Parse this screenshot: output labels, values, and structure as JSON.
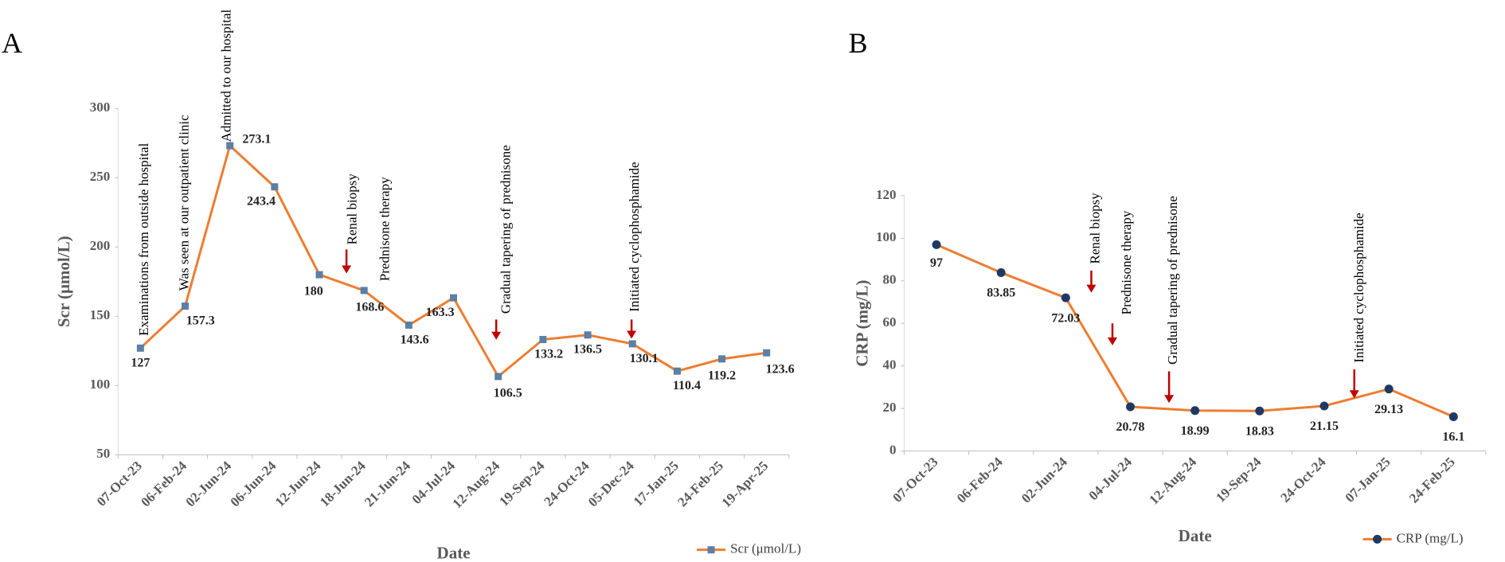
{
  "chart_data": [
    {
      "type": "line",
      "panel": "A",
      "x_label": "Date",
      "y_label": "Scr (μmol/L)",
      "categories": [
        "07-Oct-23",
        "06-Feb-24",
        "02-Jun-24",
        "06-Jun-24",
        "12-Jun-24",
        "18-Jun-24",
        "21-Jun-24",
        "04-Jul-24",
        "12-Aug-24",
        "19-Sep-24",
        "24-Oct-24",
        "05-Dec-24",
        "17-Jan-25",
        "24-Feb-25",
        "19-Apr-25"
      ],
      "series": [
        {
          "name": "Scr (μmol/L)",
          "color": "#ED7D31",
          "marker_color": "#5B7FA6",
          "marker": "square",
          "values": [
            127,
            157.3,
            273.1,
            243.4,
            180,
            168.6,
            143.6,
            163.3,
            106.5,
            133.2,
            136.5,
            130.1,
            110.4,
            119.2,
            123.6
          ]
        }
      ],
      "ylim": [
        50,
        300
      ],
      "yticks": [
        50,
        100,
        150,
        200,
        250,
        300
      ],
      "legend": "bottom-right",
      "arrow_color": "#C00000",
      "annotations": [
        "Examinations from outside hospital",
        "Was seen at our outpatient clinic",
        "Admitted to our hospital",
        "Renal biopsy",
        "Prednisone  therapy",
        "Gradual tapering of prednisone",
        "Initiated cyclophosphamide"
      ]
    },
    {
      "type": "line",
      "panel": "B",
      "x_label": "Date",
      "y_label": "CRP (mg/L)",
      "categories": [
        "07-Oct-23",
        "06-Feb-24",
        "02-Jun-24",
        "04-Jul-24",
        "12-Aug-24",
        "19-Sep-24",
        "24-Oct-24",
        "07-Jan-25",
        "24-Feb-25"
      ],
      "series": [
        {
          "name": "CRP (mg/L)",
          "color": "#ED7D31",
          "marker_color": "#1F3864",
          "marker": "circle",
          "values": [
            97,
            83.85,
            72.03,
            20.78,
            18.99,
            18.83,
            21.15,
            29.13,
            16.1
          ]
        }
      ],
      "ylim": [
        0,
        120
      ],
      "yticks": [
        0,
        20,
        40,
        60,
        80,
        100,
        120
      ],
      "legend": "bottom-right",
      "arrow_color": "#C00000",
      "annotations": [
        "Renal biopsy",
        "Prednisone  therapy",
        "Gradual tapering of prednisone",
        "Initiated cyclophosphamide"
      ]
    }
  ]
}
